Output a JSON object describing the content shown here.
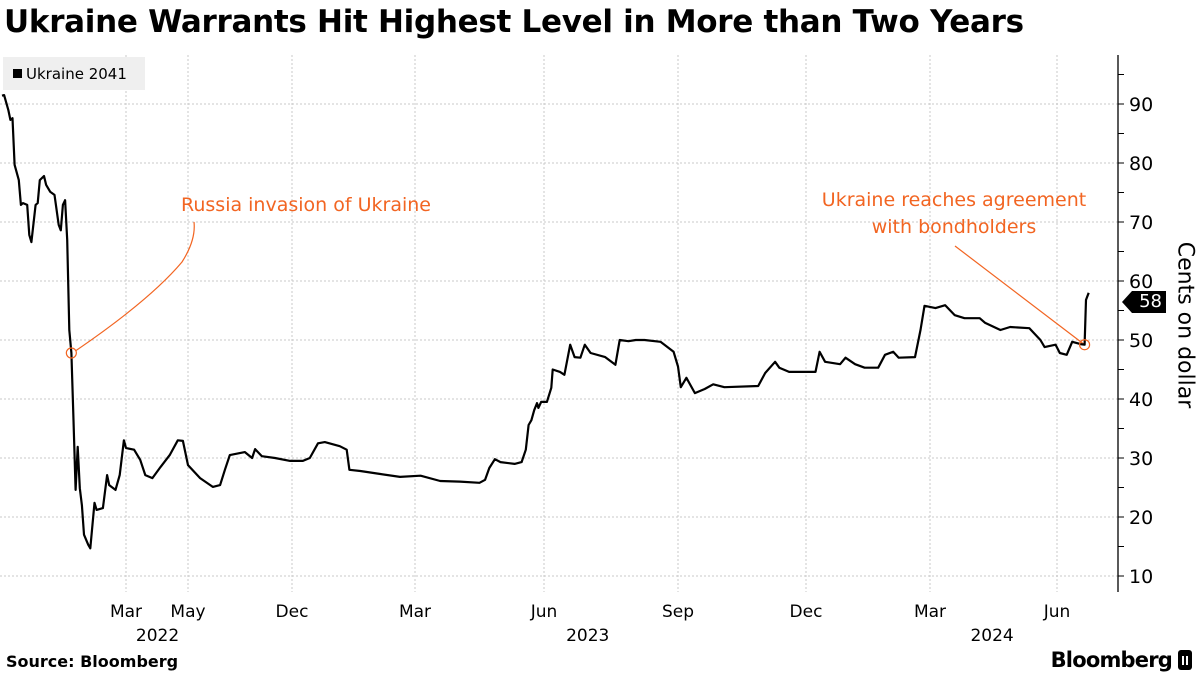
{
  "title": "Ukraine Warrants Hit Highest Level in More than Two Years",
  "source": "Source: Bloomberg",
  "brand": "Bloomberg",
  "colors": {
    "line": "#000000",
    "annotation": "#f26522",
    "grid": "#c8c8c8",
    "legend_bg": "#efefef"
  },
  "chart_data": {
    "type": "line",
    "title": "Ukraine Warrants Hit Highest Level in More than Two Years",
    "ylabel": "Cents on dollar",
    "ylim": [
      5,
      98
    ],
    "y_ticks": [
      10,
      20,
      30,
      40,
      50,
      60,
      70,
      80,
      90
    ],
    "y_axis_side": "right",
    "grid": true,
    "legend_position": "top-left",
    "x_ticks": [
      {
        "date": "2022-03-01",
        "label": "Mar"
      },
      {
        "date": "2022-05-01",
        "label": "May"
      },
      {
        "date": "2022-12-01",
        "label": "Dec"
      },
      {
        "date": "2023-03-01",
        "label": "Mar"
      },
      {
        "date": "2023-06-01",
        "label": "Jun"
      },
      {
        "date": "2023-09-01",
        "label": "Sep"
      },
      {
        "date": "2023-12-01",
        "label": "Dec"
      },
      {
        "date": "2024-03-01",
        "label": "Mar"
      },
      {
        "date": "2024-06-01",
        "label": "Jun"
      }
    ],
    "x_year_labels": [
      {
        "date": "2022-04-01",
        "label": "2022"
      },
      {
        "date": "2023-07-01",
        "label": "2023"
      },
      {
        "date": "2024-04-15",
        "label": "2024"
      }
    ],
    "last_value_label": "58",
    "series": [
      {
        "name": "Ukraine 2041",
        "color": "#000000",
        "points": [
          [
            "2022-01-01",
            91.4
          ],
          [
            "2022-01-02",
            91.5
          ],
          [
            "2022-01-04",
            89
          ],
          [
            "2022-01-05",
            87.3
          ],
          [
            "2022-01-06",
            87.6
          ],
          [
            "2022-01-07",
            79.7
          ],
          [
            "2022-01-09",
            77.1
          ],
          [
            "2022-01-10",
            72.9
          ],
          [
            "2022-01-11",
            73.2
          ],
          [
            "2022-01-13",
            72.9
          ],
          [
            "2022-01-14",
            67.8
          ],
          [
            "2022-01-15",
            66.6
          ],
          [
            "2022-01-17",
            72.9
          ],
          [
            "2022-01-18",
            73.2
          ],
          [
            "2022-01-19",
            77.1
          ],
          [
            "2022-01-21",
            77.8
          ],
          [
            "2022-01-22",
            76.3
          ],
          [
            "2022-01-24",
            75.1
          ],
          [
            "2022-01-26",
            74.6
          ],
          [
            "2022-01-28",
            69.5
          ],
          [
            "2022-01-29",
            68.6
          ],
          [
            "2022-01-30",
            72.9
          ],
          [
            "2022-01-31",
            73.7
          ],
          [
            "2022-02-01",
            67
          ],
          [
            "2022-02-02",
            51.7
          ],
          [
            "2022-02-03",
            47.8
          ],
          [
            "2022-02-04",
            36.4
          ],
          [
            "2022-02-05",
            24.6
          ],
          [
            "2022-02-06",
            31.9
          ],
          [
            "2022-02-07",
            24.9
          ],
          [
            "2022-02-08",
            22
          ],
          [
            "2022-02-09",
            17
          ],
          [
            "2022-02-11",
            15.3
          ],
          [
            "2022-02-12",
            14.7
          ],
          [
            "2022-02-14",
            22.4
          ],
          [
            "2022-02-15",
            21.2
          ],
          [
            "2022-02-18",
            21.5
          ],
          [
            "2022-02-20",
            27.1
          ],
          [
            "2022-02-21",
            25.4
          ],
          [
            "2022-02-24",
            24.6
          ],
          [
            "2022-02-26",
            27.1
          ],
          [
            "2022-02-28",
            33
          ],
          [
            "2022-03-01",
            31.7
          ],
          [
            "2022-03-09",
            31.4
          ],
          [
            "2022-03-15",
            29.7
          ],
          [
            "2022-03-20",
            27.1
          ],
          [
            "2022-03-27",
            26.6
          ],
          [
            "2022-04-04",
            28.5
          ],
          [
            "2022-04-13",
            30.5
          ],
          [
            "2022-04-21",
            33
          ],
          [
            "2022-04-26",
            32.9
          ],
          [
            "2022-05-01",
            28.8
          ],
          [
            "2022-05-26",
            26.6
          ],
          [
            "2022-06-21",
            25.1
          ],
          [
            "2022-07-06",
            25.4
          ],
          [
            "2022-07-16",
            28
          ],
          [
            "2022-07-26",
            30.5
          ],
          [
            "2022-08-26",
            31
          ],
          [
            "2022-09-10",
            30
          ],
          [
            "2022-09-16",
            31.5
          ],
          [
            "2022-09-30",
            30.3
          ],
          [
            "2022-10-27",
            30
          ],
          [
            "2022-11-27",
            29.5
          ],
          [
            "2022-12-09",
            29.5
          ],
          [
            "2022-12-14",
            30
          ],
          [
            "2022-12-20",
            32.5
          ],
          [
            "2022-12-25",
            32.7
          ],
          [
            "2023-01-05",
            32
          ],
          [
            "2023-01-10",
            31.4
          ],
          [
            "2023-01-12",
            28
          ],
          [
            "2023-01-20",
            27.8
          ],
          [
            "2023-02-03",
            27.3
          ],
          [
            "2023-02-18",
            26.8
          ],
          [
            "2023-03-05",
            27
          ],
          [
            "2023-03-19",
            26.1
          ],
          [
            "2023-04-02",
            26
          ],
          [
            "2023-04-16",
            25.8
          ],
          [
            "2023-04-20",
            26.3
          ],
          [
            "2023-04-23",
            28.3
          ],
          [
            "2023-04-27",
            29.8
          ],
          [
            "2023-05-01",
            29.3
          ],
          [
            "2023-05-11",
            29
          ],
          [
            "2023-05-16",
            29.3
          ],
          [
            "2023-05-19",
            31.4
          ],
          [
            "2023-05-21",
            35.6
          ],
          [
            "2023-05-23",
            36.4
          ],
          [
            "2023-05-25",
            38.1
          ],
          [
            "2023-05-27",
            39.3
          ],
          [
            "2023-05-28",
            38.5
          ],
          [
            "2023-05-30",
            39.5
          ],
          [
            "2023-06-03",
            39.5
          ],
          [
            "2023-06-06",
            41.9
          ],
          [
            "2023-06-07",
            45
          ],
          [
            "2023-06-12",
            44.6
          ],
          [
            "2023-06-15",
            44.1
          ],
          [
            "2023-06-19",
            49.2
          ],
          [
            "2023-06-22",
            47.1
          ],
          [
            "2023-06-26",
            47
          ],
          [
            "2023-06-29",
            49.2
          ],
          [
            "2023-07-03",
            47.8
          ],
          [
            "2023-07-13",
            47.1
          ],
          [
            "2023-07-20",
            45.8
          ],
          [
            "2023-07-23",
            50
          ],
          [
            "2023-07-29",
            49.8
          ],
          [
            "2023-08-03",
            50
          ],
          [
            "2023-08-09",
            50
          ],
          [
            "2023-08-20",
            49.7
          ],
          [
            "2023-08-29",
            48
          ],
          [
            "2023-09-01",
            45.5
          ],
          [
            "2023-09-03",
            42
          ],
          [
            "2023-09-07",
            43.6
          ],
          [
            "2023-09-13",
            41
          ],
          [
            "2023-09-20",
            41.7
          ],
          [
            "2023-09-26",
            42.5
          ],
          [
            "2023-10-04",
            42
          ],
          [
            "2023-10-28",
            42.2
          ],
          [
            "2023-11-02",
            44.4
          ],
          [
            "2023-11-09",
            46.3
          ],
          [
            "2023-11-12",
            45.3
          ],
          [
            "2023-11-19",
            44.6
          ],
          [
            "2023-11-27",
            44.6
          ],
          [
            "2023-12-08",
            44.6
          ],
          [
            "2023-12-11",
            48
          ],
          [
            "2023-12-15",
            46.3
          ],
          [
            "2023-12-26",
            45.9
          ],
          [
            "2023-12-30",
            47
          ],
          [
            "2024-01-06",
            45.9
          ],
          [
            "2024-01-13",
            45.3
          ],
          [
            "2024-01-23",
            45.3
          ],
          [
            "2024-01-28",
            47.5
          ],
          [
            "2024-02-03",
            48
          ],
          [
            "2024-02-07",
            47
          ],
          [
            "2024-02-19",
            47.1
          ],
          [
            "2024-02-23",
            51.7
          ],
          [
            "2024-02-26",
            55.8
          ],
          [
            "2024-03-05",
            55.4
          ],
          [
            "2024-03-12",
            55.9
          ],
          [
            "2024-03-19",
            54.2
          ],
          [
            "2024-03-26",
            53.7
          ],
          [
            "2024-04-06",
            53.7
          ],
          [
            "2024-04-10",
            52.9
          ],
          [
            "2024-04-21",
            51.7
          ],
          [
            "2024-04-28",
            52.2
          ],
          [
            "2024-05-12",
            52
          ],
          [
            "2024-05-20",
            50
          ],
          [
            "2024-05-23",
            48.8
          ],
          [
            "2024-05-31",
            49.2
          ],
          [
            "2024-06-03",
            47.8
          ],
          [
            "2024-06-08",
            47.5
          ],
          [
            "2024-06-12",
            49.7
          ],
          [
            "2024-06-18",
            49.3
          ],
          [
            "2024-06-21",
            49.2
          ],
          [
            "2024-06-22",
            56.8
          ],
          [
            "2024-06-24",
            58
          ]
        ]
      }
    ],
    "annotations": [
      {
        "date": "2022-02-03",
        "value": 47.8,
        "text": "Russia invasion of Ukraine"
      },
      {
        "date": "2024-06-21",
        "value": 49.2,
        "text_lines": [
          "Ukraine reaches agreement",
          "with bondholders"
        ]
      }
    ]
  }
}
